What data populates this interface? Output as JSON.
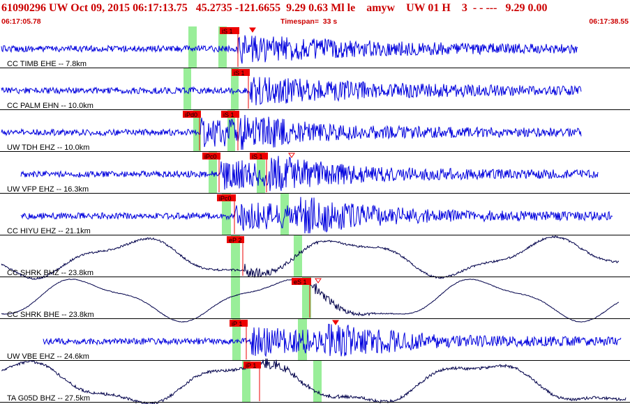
{
  "header": {
    "title": "61090296 UW Oct 09, 2015 06:17:13.75   45.2735 -121.6655  9.29 0.63 Ml le    amyw    UW 01 H    3  - - ---   9.29 0.00",
    "time_start": "06:17:05.78",
    "timespan": "Timespan=  33 s",
    "time_end": "06:17:38.55"
  },
  "colors": {
    "header_text": "#cc0000",
    "trace_shortperiod": "#0000dd",
    "trace_broadband": "#00004a",
    "window_band": "#99ee99",
    "pick": "#ee0000",
    "label": "#000000"
  },
  "traces": [
    {
      "label": "CC TIMB EHE -- 7.8km",
      "style": "sp",
      "picks": [
        {
          "text": "iS 1",
          "marker": "filled-triangle"
        }
      ]
    },
    {
      "label": "CC PALM EHN -- 10.0km",
      "style": "sp",
      "picks": [
        {
          "text": "iS 1",
          "marker": ""
        }
      ]
    },
    {
      "label": "UW TDH EHZ -- 10.0km",
      "style": "sp",
      "picks": [
        {
          "text": "iPd0",
          "marker": ""
        },
        {
          "text": "iS 1",
          "marker": ""
        }
      ]
    },
    {
      "label": "UW VFP EHZ -- 16.3km",
      "style": "sp",
      "picks": [
        {
          "text": "iPc0",
          "marker": ""
        },
        {
          "text": "iS 1",
          "marker": "open-triangle"
        }
      ]
    },
    {
      "label": "CC HIYU EHZ -- 21.1km",
      "style": "sp",
      "picks": [
        {
          "text": "iPc0",
          "marker": ""
        }
      ]
    },
    {
      "label": "CC SHRK BHZ -- 23.8km",
      "style": "bb",
      "picks": [
        {
          "text": "eP 2",
          "marker": ""
        }
      ]
    },
    {
      "label": "CC SHRK BHE -- 23.8km",
      "style": "bb",
      "picks": [
        {
          "text": "eS 1",
          "marker": "open-triangle"
        }
      ]
    },
    {
      "label": "UW VBE EHZ -- 24.6km",
      "style": "sp",
      "picks": [
        {
          "text": "iP 1",
          "marker": ""
        }
      ]
    },
    {
      "label": "TA G05D BHZ -- 27.5km",
      "style": "bb",
      "picks": [
        {
          "text": "iP 1",
          "marker": ""
        }
      ]
    }
  ]
}
